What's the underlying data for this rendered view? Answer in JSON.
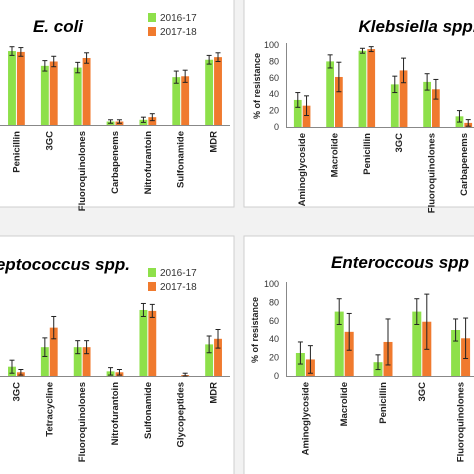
{
  "colors": {
    "s2016": "#8ee04a",
    "s2017": "#f07a2e",
    "error": "#222222",
    "axis": "#888888",
    "border": "#cfcfcf",
    "panel": "#ffffff"
  },
  "chart_data": [
    {
      "type": "bar",
      "title": "E. coli",
      "ylabel": "",
      "ylim": [
        0,
        100
      ],
      "show_yticks": false,
      "categories": [
        "Penicillin",
        "3GC",
        "Fluoroquinolones",
        "Carbapenems",
        "Nitrofurantoin",
        "Sulfonamide",
        "MDR"
      ],
      "series": [
        {
          "name": "2016-17",
          "values": [
            85,
            68,
            66,
            4,
            6,
            55,
            75
          ],
          "errors": [
            5,
            6,
            6,
            2,
            3,
            7,
            5
          ]
        },
        {
          "name": "2017-18",
          "values": [
            84,
            73,
            77,
            4,
            9,
            56,
            78
          ],
          "errors": [
            5,
            6,
            6,
            2,
            4,
            7,
            5
          ]
        }
      ],
      "legend": "top-right"
    },
    {
      "type": "bar",
      "title": "Klebsiella spp.",
      "ylabel": "% of resistance",
      "ylim": [
        0,
        100
      ],
      "show_yticks": true,
      "yticks": [
        0,
        20,
        40,
        60,
        80,
        100
      ],
      "categories": [
        "Aminoglycoside",
        "Macrolide",
        "Penicillin",
        "3GC",
        "Fluoroquinolones",
        "Carbapenems"
      ],
      "series": [
        {
          "name": "2016-17",
          "values": [
            33,
            80,
            93,
            52,
            55,
            13
          ],
          "errors": [
            9,
            8,
            3,
            10,
            10,
            7
          ]
        },
        {
          "name": "2017-18",
          "values": [
            26,
            61,
            95,
            69,
            46,
            5
          ],
          "errors": [
            12,
            18,
            3,
            15,
            12,
            4
          ]
        }
      ],
      "legend": "none"
    },
    {
      "type": "bar",
      "title": "reptococcus spp.",
      "ylabel": "",
      "ylim": [
        0,
        100
      ],
      "show_yticks": false,
      "categories": [
        "3GC",
        "Tetracycline",
        "Fluoroquinolones",
        "Nitrofurantoin",
        "Sulfonamide",
        "Glycopeptides",
        "MDR"
      ],
      "series": [
        {
          "name": "2016-17",
          "values": [
            10,
            31,
            31,
            5,
            71,
            0,
            34
          ],
          "errors": [
            7,
            10,
            7,
            4,
            7,
            0,
            9
          ]
        },
        {
          "name": "2017-18",
          "values": [
            4,
            52,
            31,
            4,
            70,
            1,
            40
          ],
          "errors": [
            3,
            12,
            7,
            3,
            7,
            2,
            10
          ]
        }
      ],
      "legend": "top-right"
    },
    {
      "type": "bar",
      "title": "Enteroccous spp",
      "ylabel": "% of resistance",
      "ylim": [
        0,
        100
      ],
      "show_yticks": true,
      "yticks": [
        0,
        20,
        40,
        60,
        80,
        100
      ],
      "categories": [
        "Aminoglycoside",
        "Macrolide",
        "Penicillin",
        "3GC",
        "Fluoroquinolones"
      ],
      "series": [
        {
          "name": "2016-17",
          "values": [
            25,
            70,
            15,
            70,
            50
          ],
          "errors": [
            12,
            14,
            8,
            14,
            12
          ]
        },
        {
          "name": "2017-18",
          "values": [
            18,
            48,
            37,
            59,
            41
          ],
          "errors": [
            15,
            20,
            25,
            30,
            22
          ]
        }
      ],
      "legend": "none"
    }
  ]
}
